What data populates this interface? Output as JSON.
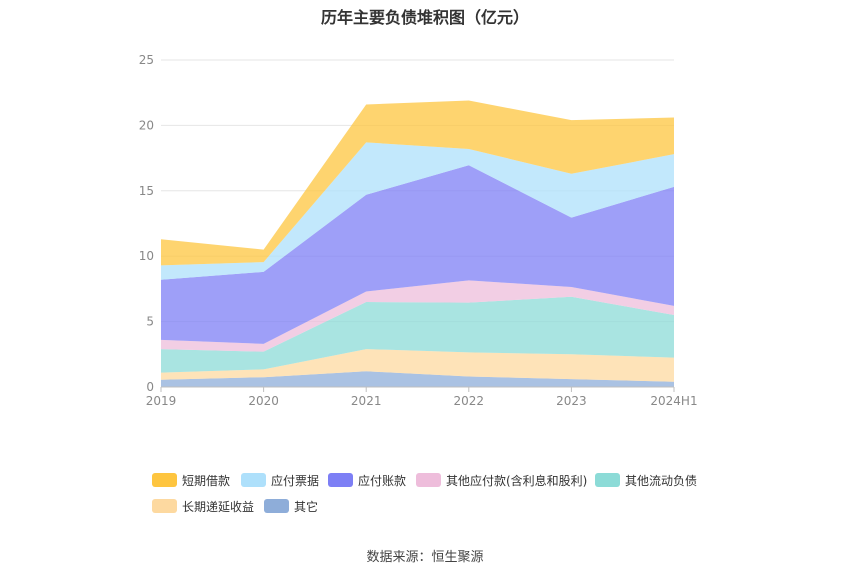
{
  "chart_data": {
    "type": "area",
    "stacked": true,
    "title": "历年主要负债堆积图（亿元）",
    "categories": [
      "2019",
      "2020",
      "2021",
      "2022",
      "2023",
      "2024H1"
    ],
    "ylim": [
      0,
      25
    ],
    "yticks": [
      "0",
      "5",
      "10",
      "15",
      "20",
      "25"
    ],
    "grid": true,
    "legend_position": "bottom",
    "series": [
      {
        "name": "其它",
        "color": "#8eadd9",
        "values": [
          0.55,
          0.75,
          1.2,
          0.8,
          0.6,
          0.4
        ]
      },
      {
        "name": "长期递延收益",
        "color": "#fdd9a0",
        "values": [
          0.55,
          0.6,
          1.7,
          1.85,
          1.9,
          1.85
        ]
      },
      {
        "name": "其他流动负债",
        "color": "#8cdbd7",
        "values": [
          1.8,
          1.35,
          3.6,
          3.8,
          4.4,
          3.25
        ]
      },
      {
        "name": "其他应付款(含利息和股利)",
        "color": "#eebddb",
        "values": [
          0.7,
          0.6,
          0.8,
          1.7,
          0.75,
          0.7
        ]
      },
      {
        "name": "应付账款",
        "color": "#7d7ff5",
        "values": [
          4.6,
          5.5,
          7.4,
          8.8,
          5.3,
          9.1
        ]
      },
      {
        "name": "应付票据",
        "color": "#aee0fb",
        "values": [
          1.1,
          0.75,
          4.0,
          1.25,
          3.35,
          2.5
        ]
      },
      {
        "name": "短期借款",
        "color": "#fec53f",
        "values": [
          2.0,
          0.95,
          2.9,
          3.7,
          4.1,
          2.8
        ]
      }
    ]
  },
  "legend": {
    "row1": [
      {
        "label": "短期借款",
        "color": "#fec53f"
      },
      {
        "label": "应付票据",
        "color": "#aee0fb"
      },
      {
        "label": "应付账款",
        "color": "#7d7ff5"
      },
      {
        "label": "其他应付款(含利息和股利)",
        "color": "#eebddb"
      },
      {
        "label": "其他流动负债",
        "color": "#8cdbd7"
      }
    ],
    "row2": [
      {
        "label": "长期递延收益",
        "color": "#fdd9a0"
      },
      {
        "label": "其它",
        "color": "#8eadd9"
      }
    ]
  },
  "source_note": "数据来源：恒生聚源"
}
